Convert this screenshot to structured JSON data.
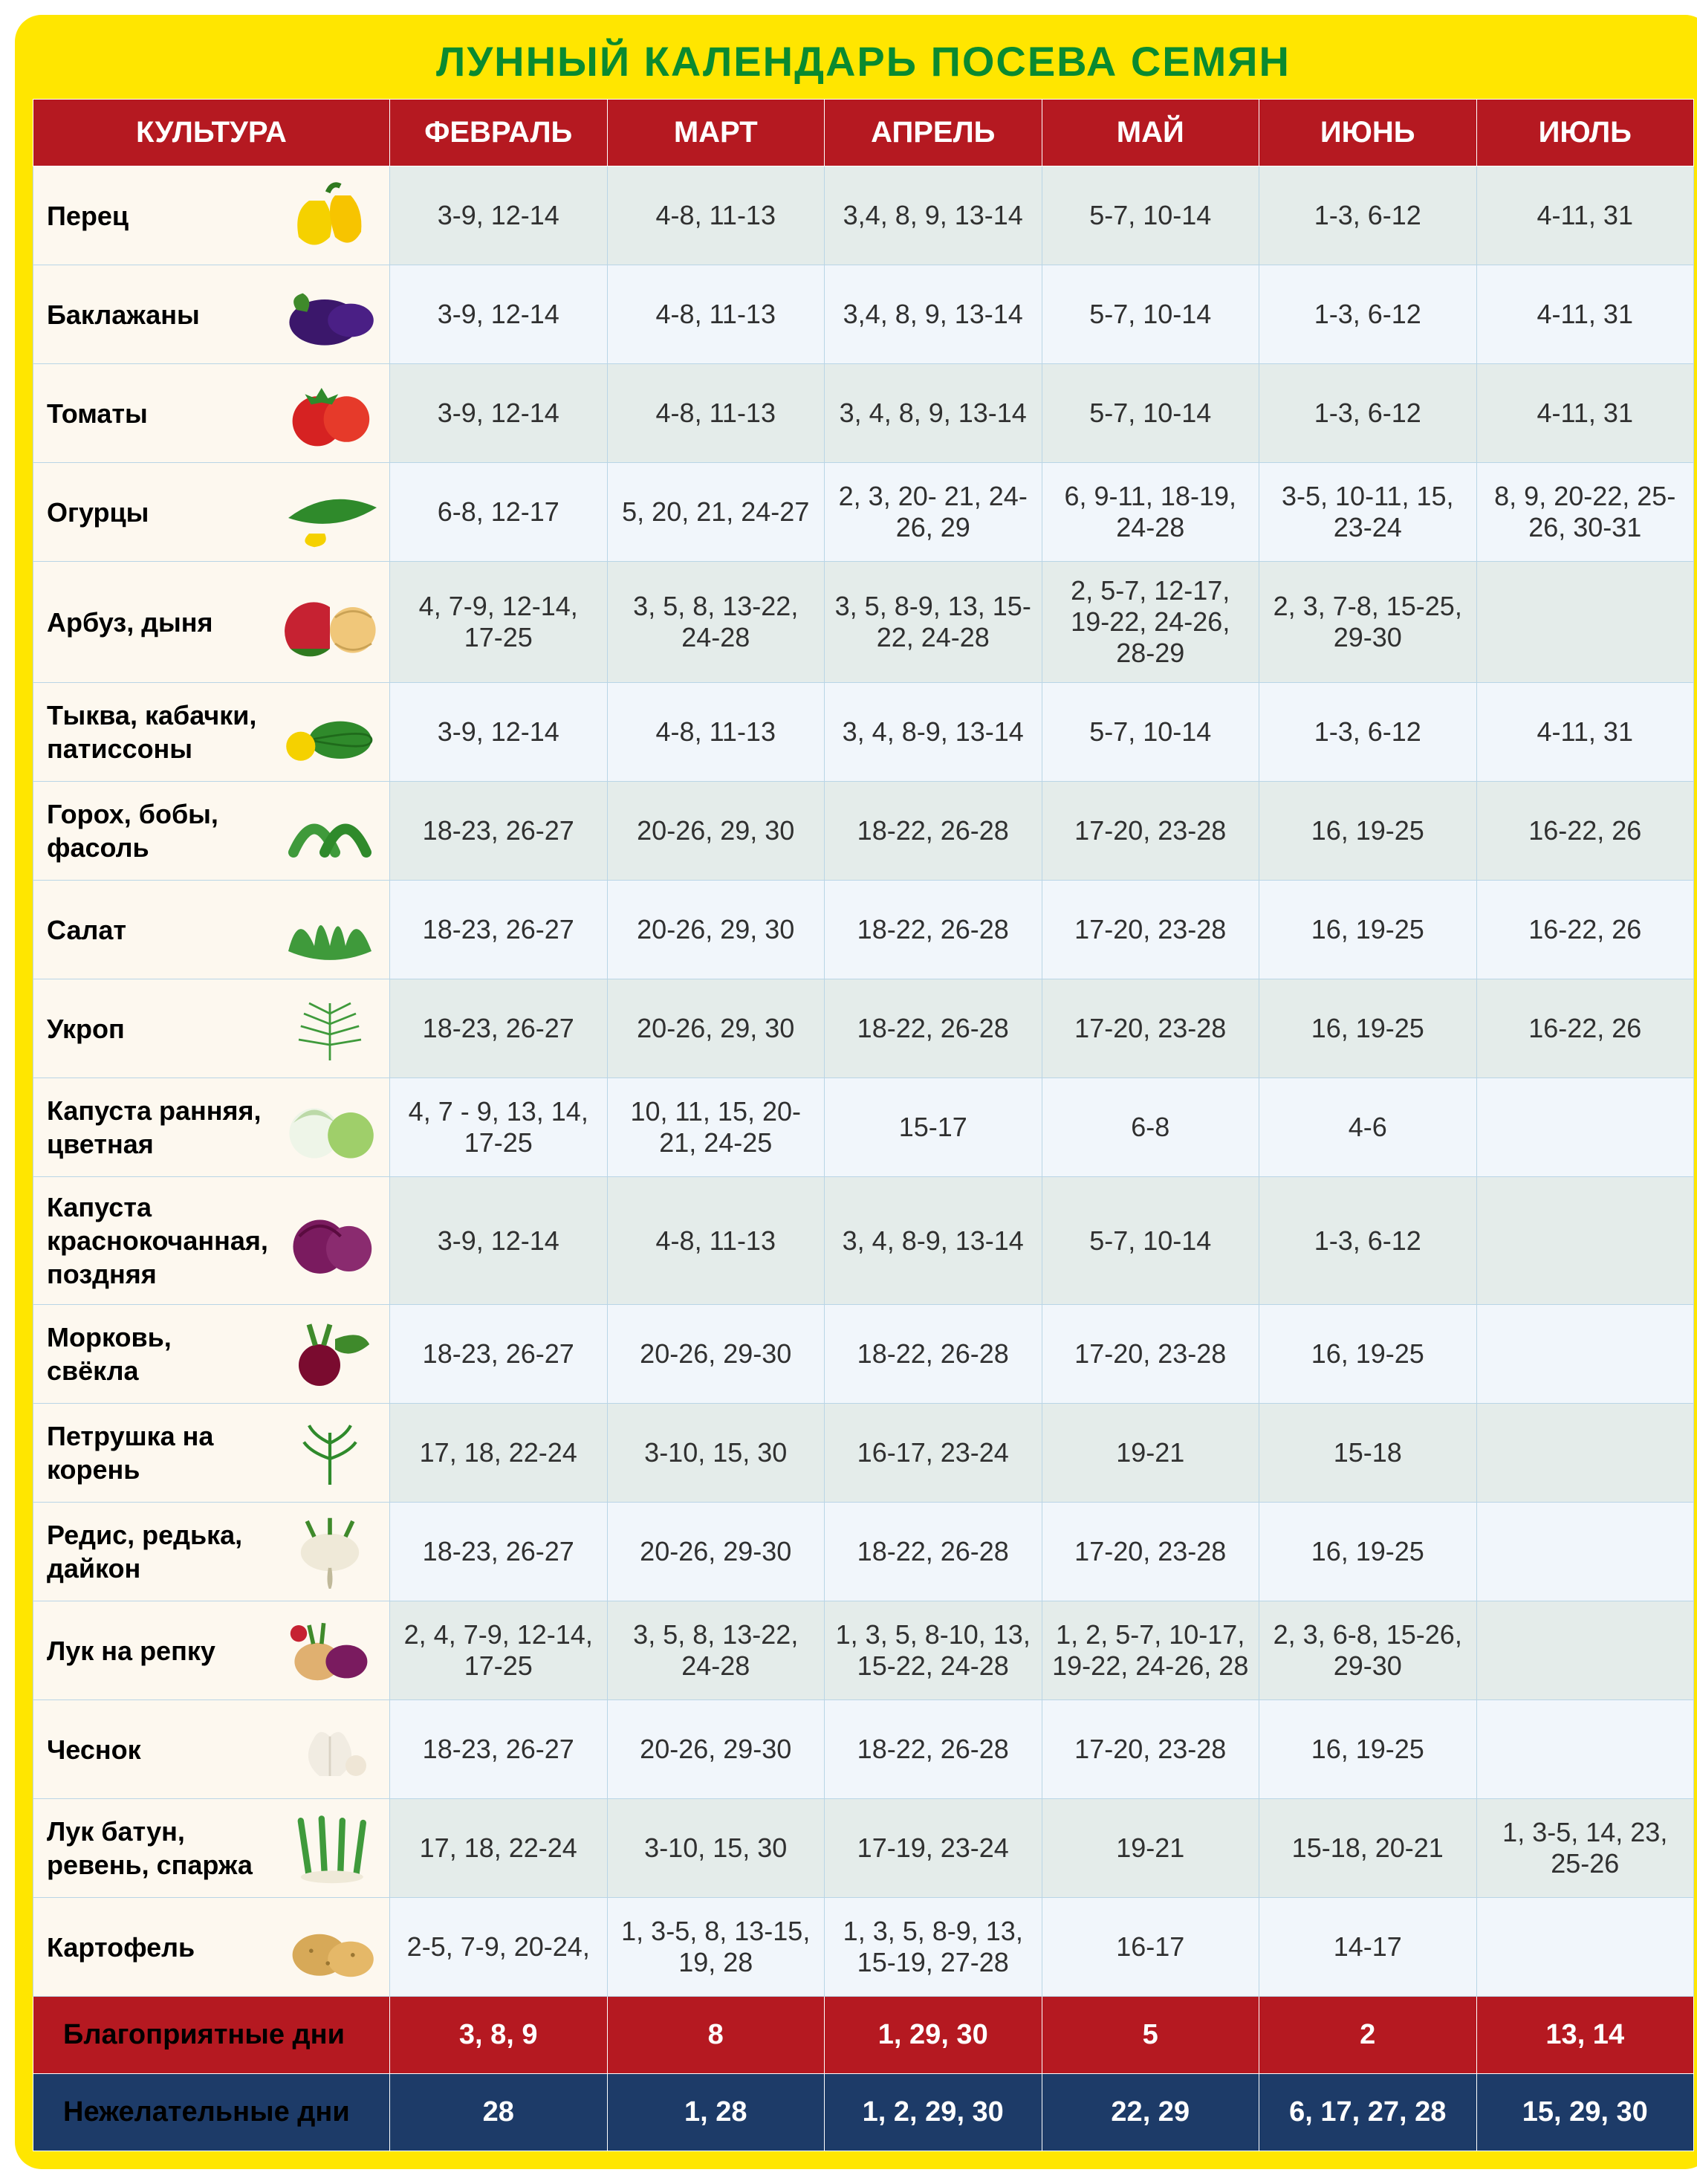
{
  "title": "ЛУННЫЙ КАЛЕНДАРЬ ПОСЕВА СЕМЯН",
  "columns_header": "КУЛЬТУРА",
  "months": [
    "ФЕВРАЛЬ",
    "МАРТ",
    "АПРЕЛЬ",
    "МАЙ",
    "ИЮНЬ",
    "ИЮЛЬ"
  ],
  "rows": [
    {
      "label": "Перец",
      "veg": "pepper",
      "cells": [
        "3-9, 12-14",
        "4-8, 11-13",
        "3,4, 8, 9, 13-14",
        "5-7, 10-14",
        "1-3, 6-12",
        "4-11, 31"
      ]
    },
    {
      "label": "Баклажаны",
      "veg": "eggplant",
      "cells": [
        "3-9, 12-14",
        "4-8, 11-13",
        "3,4, 8, 9, 13-14",
        "5-7, 10-14",
        "1-3, 6-12",
        "4-11, 31"
      ]
    },
    {
      "label": "Томаты",
      "veg": "tomato",
      "cells": [
        "3-9, 12-14",
        "4-8, 11-13",
        "3, 4, 8, 9, 13-14",
        "5-7, 10-14",
        "1-3, 6-12",
        "4-11, 31"
      ]
    },
    {
      "label": "Огурцы",
      "veg": "cucumber",
      "cells": [
        "6-8, 12-17",
        "5, 20, 21, 24-27",
        "2, 3, 20- 21, 24-26, 29",
        "6, 9-11, 18-19, 24-28",
        "3-5, 10-11, 15, 23-24",
        "8, 9, 20-22, 25-26, 30-31"
      ]
    },
    {
      "label": "Арбуз, дыня",
      "veg": "melon",
      "cells": [
        "4, 7-9, 12-14, 17-25",
        "3, 5, 8, 13-22, 24-28",
        "3, 5, 8-9, 13, 15-22, 24-28",
        "2, 5-7, 12-17, 19-22, 24-26, 28-29",
        "2, 3, 7-8, 15-25, 29-30",
        ""
      ]
    },
    {
      "label": "Тыква, кабачки, патиссоны",
      "veg": "squash",
      "cells": [
        "3-9, 12-14",
        "4-8, 11-13",
        "3, 4, 8-9, 13-14",
        "5-7, 10-14",
        "1-3, 6-12",
        "4-11, 31"
      ]
    },
    {
      "label": "Горох, бобы, фасоль",
      "veg": "beans",
      "cells": [
        "18-23, 26-27",
        "20-26, 29, 30",
        "18-22, 26-28",
        "17-20, 23-28",
        "16, 19-25",
        "16-22, 26"
      ]
    },
    {
      "label": "Салат",
      "veg": "lettuce",
      "cells": [
        "18-23, 26-27",
        "20-26, 29, 30",
        "18-22, 26-28",
        "17-20, 23-28",
        "16, 19-25",
        "16-22, 26"
      ]
    },
    {
      "label": "Укроп",
      "veg": "dill",
      "cells": [
        "18-23, 26-27",
        "20-26, 29, 30",
        "18-22, 26-28",
        "17-20, 23-28",
        "16, 19-25",
        "16-22, 26"
      ]
    },
    {
      "label": "Капуста ранняя, цветная",
      "veg": "cabbage1",
      "cells": [
        "4, 7 - 9, 13, 14, 17-25",
        "10, 11, 15, 20-21, 24-25",
        "15-17",
        "6-8",
        "4-6",
        ""
      ]
    },
    {
      "label": "Капуста краснокочанная, поздняя",
      "veg": "cabbage2",
      "cells": [
        "3-9, 12-14",
        "4-8, 11-13",
        "3, 4, 8-9, 13-14",
        "5-7, 10-14",
        "1-3, 6-12",
        ""
      ]
    },
    {
      "label": "Морковь, свёкла",
      "veg": "beet",
      "cells": [
        "18-23, 26-27",
        "20-26, 29-30",
        "18-22, 26-28",
        "17-20, 23-28",
        "16, 19-25",
        ""
      ]
    },
    {
      "label": "Петрушка на корень",
      "veg": "parsley",
      "cells": [
        "17, 18, 22-24",
        "3-10, 15, 30",
        "16-17, 23-24",
        "19-21",
        "15-18",
        ""
      ]
    },
    {
      "label": "Редис, редька, дайкон",
      "veg": "radish",
      "cells": [
        "18-23, 26-27",
        "20-26, 29-30",
        "18-22, 26-28",
        "17-20, 23-28",
        "16, 19-25",
        ""
      ]
    },
    {
      "label": "Лук на репку",
      "veg": "onion",
      "cells": [
        "2, 4, 7-9, 12-14, 17-25",
        "3, 5, 8, 13-22, 24-28",
        "1, 3, 5, 8-10, 13, 15-22, 24-28",
        "1, 2, 5-7, 10-17, 19-22, 24-26, 28",
        "2, 3, 6-8, 15-26, 29-30",
        ""
      ]
    },
    {
      "label": "Чеснок",
      "veg": "garlic",
      "cells": [
        "18-23, 26-27",
        "20-26, 29-30",
        "18-22, 26-28",
        "17-20, 23-28",
        "16, 19-25",
        ""
      ]
    },
    {
      "label": "Лук батун, ревень, спаржа",
      "veg": "scallion",
      "cells": [
        "17, 18, 22-24",
        "3-10, 15, 30",
        "17-19, 23-24",
        "19-21",
        "15-18, 20-21",
        "1, 3-5, 14, 23, 25-26"
      ]
    },
    {
      "label": "Картофель",
      "veg": "potato",
      "cells": [
        "2-5, 7-9, 20-24,",
        "1, 3-5, 8, 13-15, 19, 28",
        "1, 3, 5, 8-9, 13, 15-19, 27-28",
        "16-17",
        "14-17",
        ""
      ]
    }
  ],
  "fav": {
    "label": "Благоприятные дни",
    "cells": [
      "3, 8, 9",
      "8",
      "1, 29, 30",
      "5",
      "2",
      "13, 14"
    ]
  },
  "bad": {
    "label": "Нежелательные дни",
    "cells": [
      "28",
      "1, 28",
      "1, 2, 29, 30",
      "22, 29",
      "6, 17, 27, 28",
      "15, 29, 30"
    ]
  },
  "veg_svg": {
    "pepper": "<svg viewBox='0 0 100 70'><path d='M30 20 Q15 30 20 55 Q35 70 50 55 Q55 35 45 20 Z' fill='#f5d100'/><path d='M55 15 Q45 25 55 55 Q70 68 80 50 Q82 28 70 15 Z' fill='#f7c400'/><path d='M48 12 Q52 2 60 6' stroke='#2f7a1f' stroke-width='5' fill='none'/></svg>",
    "eggplant": "<svg viewBox='0 0 100 70'><ellipse cx='45' cy='42' rx='34' ry='22' fill='#3b176b'/><ellipse cx='70' cy='40' rx='22' ry='16' fill='#4a1f85'/><path d='M18 30 Q10 18 24 14 Q34 20 28 32 Z' fill='#3f8a2b'/></svg>",
    "tomato": "<svg viewBox='0 0 100 70'><circle cx='38' cy='42' r='24' fill='#d62222'/><circle cx='66' cy='40' r='22' fill='#e63a2a'/><path d='M36 20 l6 -10 l6 10 l10 -4 l-6 10 l-10 -2 l-10 2 l-6 -10 z' fill='#2f8a2b'/></svg>",
    "cucumber": "<svg viewBox='0 0 100 70'><path d='M10 40 Q50 10 95 30 Q55 55 10 40 Z' fill='#2f8a2b'/><path d='M30 55 Q20 65 35 68 Q50 66 45 55 Z' fill='#f5d100'/></svg>",
    "melon": "<svg viewBox='0 0 100 70'><path d='M12 60 A28 28 0 0 1 50 20 L50 60 Z' fill='#c62232'/><path d='M50 60 A28 28 0 0 1 12 60 Z' fill='#2f7a1f'/><circle cx='72' cy='42' r='22' fill='#f0c77a'/><path d='M55 30 Q72 18 90 30 M55 55 Q72 67 90 55' stroke='#caa255' stroke-width='2' fill='none'/></svg>",
    "squash": "<svg viewBox='0 0 100 70'><ellipse cx='60' cy='42' rx='30' ry='18' fill='#2f8a2b'/><path d='M30 42 Q90 30 90 42 Q90 54 30 42' stroke='#1f6a1b' stroke-width='2' fill='none'/><circle cx='22' cy='48' r='14' fill='#f5d100'/></svg>",
    "beans": "<svg viewBox='0 0 100 70'><path d='M15 55 Q35 10 55 55' stroke='#3f9a3b' stroke-width='10' fill='none' stroke-linecap='round'/><path d='M45 55 Q65 10 85 55' stroke='#2f8a2b' stroke-width='10' fill='none' stroke-linecap='round'/></svg>",
    "lettuce": "<svg viewBox='0 0 100 70'><path d='M10 55 Q20 15 35 50 Q40 10 50 50 Q58 12 65 50 Q75 15 90 55 Q50 72 10 55 Z' fill='#3f9a3b'/></svg>",
    "dill": "<svg viewBox='0 0 100 70'><g stroke='#3f9a3b' stroke-width='2'><path d='M50 65 L50 10'/><path d='M50 20 L30 10 M50 20 L70 10 M50 30 L25 20 M50 30 L75 20 M50 40 L22 32 M50 40 L78 32 M50 50 L20 45 M50 50 L80 45'/></g></svg>",
    "cabbage1": "<svg viewBox='0 0 100 70'><circle cx='35' cy='40' r='24' fill='#eef5e8'/><path d='M15 30 Q35 5 55 30 Q35 15 15 30' fill='#bcd9a8'/><circle cx='70' cy='42' r='22' fill='#9fcf6a'/></svg>",
    "cabbage2": "<svg viewBox='0 0 100 70'><circle cx='40' cy='40' r='26' fill='#7a1b5f'/><circle cx='68' cy='42' r='22' fill='#8a2b6f'/><path d='M20 30 Q40 10 60 30' stroke='#5a0b3f' stroke-width='3' fill='none'/></svg>",
    "beet": "<svg viewBox='0 0 100 70'><circle cx='40' cy='45' r='20' fill='#7a0b2f'/><path d='M36 26 L30 6 M44 26 L50 6' stroke='#3f8a2b' stroke-width='5'/><path d='M55 20 Q80 10 88 25 Q70 40 55 30 Z' fill='#3f8a2b'/></svg>",
    "parsley": "<svg viewBox='0 0 100 70'><g stroke='#2f8a2b' stroke-width='3' fill='none'><path d='M50 65 L50 15'/><path d='M50 25 Q35 18 30 8 M50 25 Q65 18 70 8 M50 40 Q32 34 25 24 M50 40 Q68 34 75 24'/></g></svg>",
    "radish": "<svg viewBox='0 0 100 70'><ellipse cx='50' cy='35' rx='28' ry='18' fill='#efe9d8'/><path d='M50 50 Q48 62 50 68 Q52 62 50 50' stroke='#c0b99a' stroke-width='3'/><path d='M35 20 L28 5 M50 18 L50 2 M65 20 L72 5' stroke='#3f8a2b' stroke-width='4'/></svg>",
    "onion": "<svg viewBox='0 0 100 70'><ellipse cx='38' cy='45' rx='22' ry='18' fill='#e0b070'/><ellipse cx='66' cy='45' rx='20' ry='16' fill='#7a1b5f'/><path d='M34 28 L30 10 M42 28 L44 8' stroke='#3f8a2b' stroke-width='4'/><circle cx='20' cy='18' r='8' fill='#c62232'/></svg>",
    "garlic": "<svg viewBox='0 0 100 70'><path d='M40 60 Q22 45 34 25 Q40 12 50 22 Q60 12 66 25 Q78 45 60 60 Z' fill='#f1ece2'/><path d='M50 60 L50 22' stroke='#d9d2c4' stroke-width='2'/><circle cx='75' cy='50' r='10' fill='#efe6d6'/></svg>",
    "scallion": "<svg viewBox='0 0 100 70'><g stroke='#3f9a3b' stroke-width='6' stroke-linecap='round'><path d='M30 62 L22 8'/><path d='M45 62 L42 6'/><path d='M60 62 L62 8'/><path d='M75 62 L82 10'/></g><ellipse cx='52' cy='62' rx='30' ry='6' fill='#efe9d8'/></svg>",
    "potato": "<svg viewBox='0 0 100 70'><ellipse cx='40' cy='42' rx='26' ry='20' fill='#d7a958'/><ellipse cx='70' cy='46' rx='22' ry='17' fill='#e5b868'/><circle cx='32' cy='38' r='2' fill='#9a7632'/><circle cx='48' cy='50' r='2' fill='#9a7632'/><circle cx='72' cy='42' r='2' fill='#9a7632'/></svg>"
  },
  "colors": {
    "frame_bg": "#ffe600",
    "title_color": "#0a8a2f",
    "header_bg": "#b51921",
    "row_alt_a": "#e4ecea",
    "row_alt_b": "#f1f6fb",
    "crop_bg": "#fdf8ef",
    "fav_bg": "#b51921",
    "bad_bg": "#1d3b68",
    "border": "#b9d5e6"
  }
}
